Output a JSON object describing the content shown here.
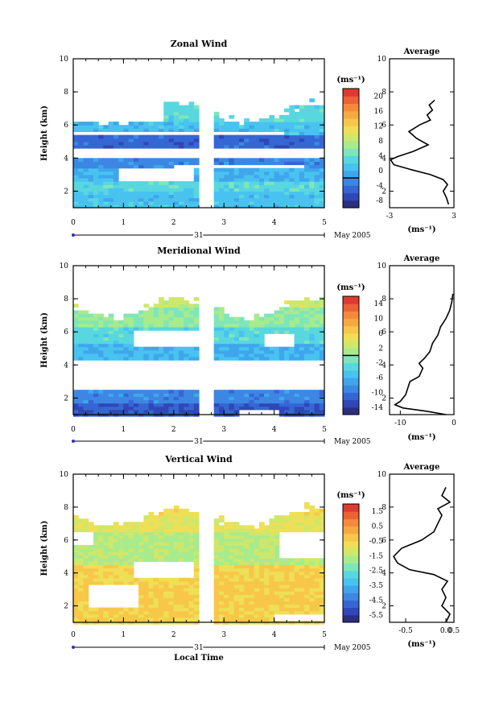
{
  "chart_data": [
    {
      "type": "heatmap",
      "title": "Zonal Wind",
      "ylabel": "Height (km)",
      "xlim": [
        0,
        5
      ],
      "ylim": [
        1,
        10
      ],
      "xticks": [
        "0",
        "1",
        "2",
        "3",
        "4",
        "5"
      ],
      "yticks": [
        "2",
        "4",
        "6",
        "8",
        "10"
      ],
      "date_label": "31",
      "date_suffix": "May 2005",
      "colorbar": {
        "unit": "(ms⁻¹)",
        "levels": [
          -8,
          24
        ],
        "ticks": [
          "20",
          "16",
          "12",
          "8",
          "4",
          "0",
          "-4",
          "-8"
        ],
        "zero_line": 0
      },
      "average": {
        "title": "Average",
        "xlabel": "(ms⁻¹)",
        "xlim": [
          -3,
          3
        ],
        "xticks": [
          "-3",
          "3"
        ],
        "yticks": [
          "2",
          "4",
          "6",
          "8",
          "10"
        ],
        "profile": [
          [
            2.5,
            1.2
          ],
          [
            2.3,
            1.6
          ],
          [
            2.0,
            2.0
          ],
          [
            2.4,
            2.4
          ],
          [
            2.0,
            2.7
          ],
          [
            0.8,
            3.0
          ],
          [
            -1.0,
            3.3
          ],
          [
            -2.6,
            3.6
          ],
          [
            -2.9,
            3.9
          ],
          [
            -2.2,
            4.1
          ],
          [
            -0.8,
            4.4
          ],
          [
            0.6,
            4.8
          ],
          [
            -0.5,
            5.2
          ],
          [
            -1.2,
            5.6
          ],
          [
            -0.2,
            6.0
          ],
          [
            0.8,
            6.3
          ],
          [
            0.5,
            6.6
          ],
          [
            1.0,
            6.9
          ],
          [
            0.7,
            7.2
          ],
          [
            1.2,
            7.5
          ]
        ]
      },
      "field": {
        "base": 3,
        "low": 5,
        "layers": [
          [
            1.2,
            1.8,
            3
          ],
          [
            1.8,
            2.5,
            5
          ],
          [
            2.5,
            3.3,
            2
          ],
          [
            3.3,
            3.9,
            -1
          ],
          [
            4.6,
            5.3,
            -3
          ],
          [
            5.6,
            6.2,
            3
          ],
          [
            6.2,
            7.3,
            5
          ]
        ],
        "gaps": [
          [
            3.9,
            4.6,
            0,
            5
          ],
          [
            2.6,
            3.3,
            0.8,
            2.4
          ],
          [
            3.3,
            3.6,
            2.0,
            4.6
          ],
          [
            6.2,
            7.3,
            0,
            1.8
          ],
          [
            5.3,
            5.6,
            0,
            4.2
          ]
        ],
        "gap_cols": [
          2.5,
          2.8
        ],
        "extent": [
          0.0,
          5.0,
          1.0,
          7.5
        ]
      }
    },
    {
      "type": "heatmap",
      "title": "Meridional Wind",
      "ylabel": "Height (km)",
      "xlim": [
        0,
        5
      ],
      "ylim": [
        1,
        10
      ],
      "xticks": [
        "0",
        "1",
        "2",
        "3",
        "4",
        "5"
      ],
      "yticks": [
        "2",
        "4",
        "6",
        "8",
        "10"
      ],
      "date_label": "31",
      "date_suffix": "May 2005",
      "colorbar": {
        "unit": "(ms⁻¹)",
        "levels": [
          -16,
          16
        ],
        "ticks": [
          "14",
          "10",
          "6",
          "2",
          "-2",
          "-6",
          "-10",
          "-14"
        ],
        "zero_line": 0
      },
      "average": {
        "title": "Average",
        "xlabel": "(ms⁻¹)",
        "xlim": [
          -12,
          0
        ],
        "xticks": [
          "-10",
          "0"
        ],
        "yticks": [
          "2",
          "4",
          "6",
          "8",
          "10"
        ],
        "profile": [
          [
            -1.5,
            1.0
          ],
          [
            -5.0,
            1.2
          ],
          [
            -9.5,
            1.4
          ],
          [
            -11.0,
            1.6
          ],
          [
            -10.0,
            1.8
          ],
          [
            -9.0,
            2.2
          ],
          [
            -8.5,
            2.7
          ],
          [
            -8.2,
            3.0
          ],
          [
            -6.5,
            3.3
          ],
          [
            -5.8,
            3.8
          ],
          [
            -6.5,
            4.1
          ],
          [
            -5.5,
            4.4
          ],
          [
            -4.5,
            4.8
          ],
          [
            -4.0,
            5.3
          ],
          [
            -3.0,
            5.8
          ],
          [
            -2.5,
            6.3
          ],
          [
            -1.5,
            6.8
          ],
          [
            -0.8,
            7.3
          ],
          [
            -0.4,
            7.8
          ],
          [
            -0.2,
            8.3
          ]
        ]
      },
      "field": {
        "base": -4,
        "low": -12,
        "layers": [
          [
            0.9,
            1.6,
            -12
          ],
          [
            1.6,
            2.4,
            -9
          ],
          [
            4.2,
            5.2,
            -6
          ],
          [
            5.2,
            6.2,
            -3
          ],
          [
            6.2,
            7.5,
            0
          ],
          [
            7.5,
            8.2,
            3
          ]
        ],
        "gaps": [
          [
            2.4,
            4.2,
            0,
            5
          ],
          [
            5.0,
            6.0,
            1.2,
            2.6
          ],
          [
            5.0,
            5.8,
            3.8,
            4.4
          ],
          [
            0.9,
            1.3,
            3.3,
            4.1
          ]
        ],
        "gap_cols": [
          2.5,
          2.8
        ],
        "extent": [
          0.0,
          5.0,
          0.9,
          8.2
        ]
      }
    },
    {
      "type": "heatmap",
      "title": "Vertical Wind",
      "ylabel": "Height (km)",
      "xlabel": "Local Time",
      "xlim": [
        0,
        5
      ],
      "ylim": [
        1,
        10
      ],
      "xticks": [
        "0",
        "1",
        "2",
        "3",
        "4",
        "5"
      ],
      "yticks": [
        "2",
        "4",
        "6",
        "8",
        "10"
      ],
      "date_label": "31",
      "date_suffix": "May 2005",
      "colorbar": {
        "unit": "(ms⁻¹)",
        "levels": [
          -6.5,
          2.5
        ],
        "ticks": [
          "1.5",
          "0.5",
          "-0.5",
          "-1.5",
          "-2.5",
          "-3.5",
          "-4.5",
          "-5.5"
        ]
      },
      "average": {
        "title": "Average",
        "xlabel": "(ms⁻¹)",
        "xlim": [
          -0.7,
          0.1
        ],
        "xticks": [
          "-0.5",
          "0.0",
          "0.5"
        ],
        "yticks": [
          "2",
          "4",
          "6",
          "8",
          "10"
        ],
        "profile": [
          [
            0.0,
            1.0
          ],
          [
            0.05,
            1.5
          ],
          [
            -0.05,
            2.0
          ],
          [
            0.0,
            2.5
          ],
          [
            -0.05,
            3.0
          ],
          [
            0.02,
            3.5
          ],
          [
            -0.15,
            3.9
          ],
          [
            -0.45,
            4.2
          ],
          [
            -0.6,
            4.6
          ],
          [
            -0.65,
            5.0
          ],
          [
            -0.55,
            5.5
          ],
          [
            -0.3,
            6.0
          ],
          [
            -0.15,
            6.5
          ],
          [
            -0.1,
            7.0
          ],
          [
            -0.05,
            7.5
          ],
          [
            -0.1,
            7.9
          ],
          [
            0.05,
            8.3
          ],
          [
            -0.05,
            8.7
          ],
          [
            0.0,
            9.2
          ]
        ]
      },
      "field": {
        "base": -0.5,
        "low": -0.5,
        "layers": [
          [
            4.5,
            6.5,
            -1.5
          ],
          [
            6.5,
            7.5,
            -0.8
          ],
          [
            3.5,
            4.5,
            -0.3
          ],
          [
            1.0,
            3.5,
            -0.2
          ]
        ],
        "gaps": [
          [
            1.8,
            3.2,
            0.3,
            1.3
          ],
          [
            3.6,
            4.6,
            1.2,
            2.4
          ],
          [
            5.6,
            6.4,
            0,
            0.4
          ],
          [
            4.8,
            6.4,
            4.1,
            5.0
          ],
          [
            1.0,
            1.4,
            4.0,
            5.0
          ]
        ],
        "gap_cols": [
          2.5,
          2.8
        ],
        "extent": [
          0.0,
          5.0,
          0.9,
          8.2
        ]
      }
    }
  ]
}
